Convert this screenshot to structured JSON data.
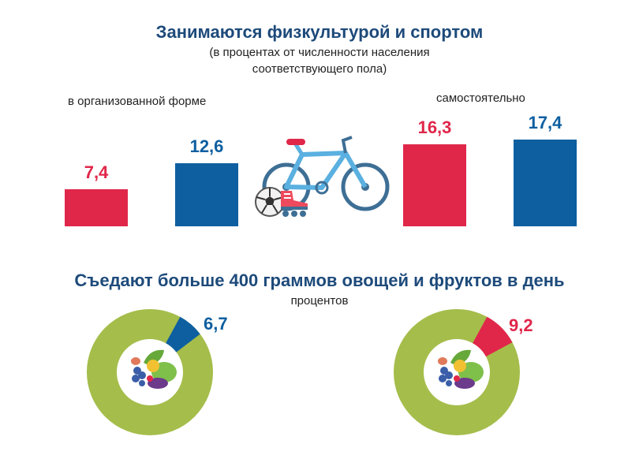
{
  "sport": {
    "title": "Занимаются физкультурой и спортом",
    "subtitle_line1": "(в процентах от численности населения",
    "subtitle_line2": "соответствующего пола)",
    "group_organized": "в организованной форме",
    "group_independent": "самостоятельно"
  },
  "nutrition": {
    "title": "Съедают больше 400 граммов овощей и фруктов в день",
    "subtitle": "процентов"
  },
  "colors": {
    "red": "#e0274a",
    "blue": "#0d5fa0",
    "green": "#a5bd4b",
    "title": "#1d4a7a"
  },
  "chart_data": [
    {
      "type": "bar",
      "title": "Занимаются физкультурой и спортом",
      "groups": [
        "в организованной форме",
        "самостоятельно"
      ],
      "series": [
        {
          "color": "red",
          "values": [
            7.4,
            16.3
          ],
          "labels": [
            "7,4",
            "16,3"
          ]
        },
        {
          "color": "blue",
          "values": [
            12.6,
            17.4
          ],
          "labels": [
            "12,6",
            "17,4"
          ]
        }
      ]
    },
    {
      "type": "pie",
      "title": "Съедают больше 400 граммов овощей и фруктов в день",
      "charts": [
        {
          "value": 6.7,
          "label": "6,7",
          "color": "blue"
        },
        {
          "value": 9.2,
          "label": "9,2",
          "color": "red"
        }
      ]
    }
  ]
}
